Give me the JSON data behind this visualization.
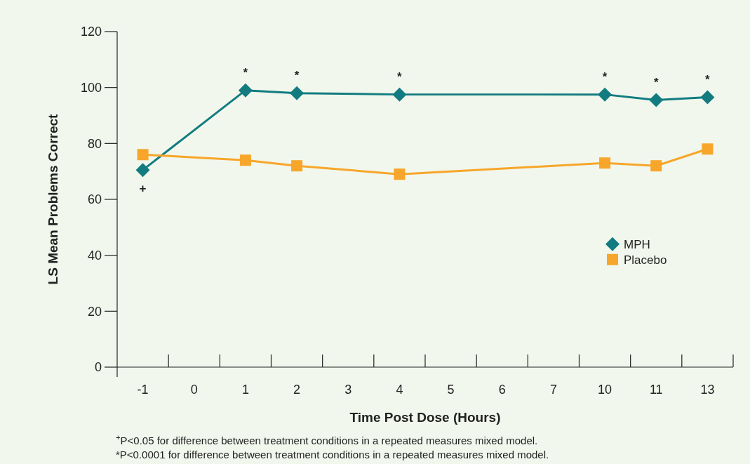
{
  "chart_data": {
    "type": "line",
    "xlabel": "Time Post Dose (Hours)",
    "ylabel": "LS Mean Problems Correct",
    "categories": [
      "-1",
      "0",
      "1",
      "2",
      "3",
      "4",
      "5",
      "6",
      "7",
      "10",
      "11",
      "13"
    ],
    "series": [
      {
        "name": "MPH",
        "color": "#127c80",
        "marker": "diamond",
        "x": [
          "-1",
          "1",
          "2",
          "4",
          "10",
          "11",
          "13"
        ],
        "values": [
          70.5,
          99,
          98,
          97.5,
          97.5,
          95.5,
          96.5
        ],
        "value_labels": [
          "+",
          "*",
          "*",
          "*",
          "*",
          "*",
          "*"
        ]
      },
      {
        "name": "Placebo",
        "color": "#f7a62b",
        "marker": "square",
        "x": [
          "-1",
          "1",
          "2",
          "4",
          "10",
          "11",
          "13"
        ],
        "values": [
          76,
          74,
          72,
          69,
          73,
          72,
          78
        ]
      }
    ],
    "ylim": [
      0,
      120
    ],
    "yticks": [
      0,
      20,
      40,
      60,
      80,
      100,
      120
    ],
    "grid": false,
    "legend": "right",
    "annotations": [
      "$^{+}$P<0.05 for difference between treatment conditions in a repeated measures mixed model.",
      "*P<0.0001 for difference between treatment conditions in a repeated measures mixed model."
    ]
  }
}
